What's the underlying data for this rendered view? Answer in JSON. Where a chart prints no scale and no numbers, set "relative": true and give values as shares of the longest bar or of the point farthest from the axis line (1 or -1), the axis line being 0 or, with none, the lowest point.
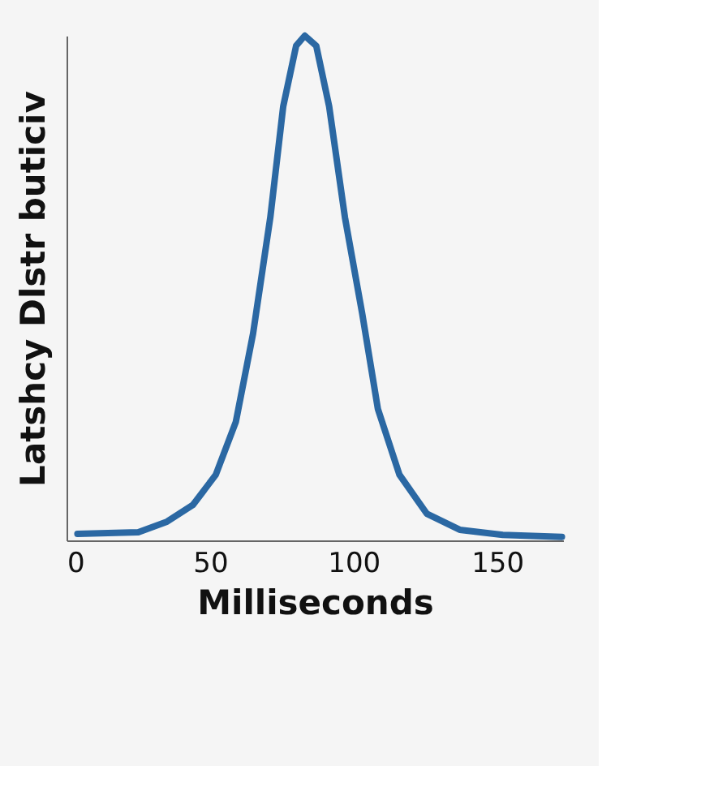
{
  "chart_data": {
    "type": "line",
    "xlabel": "Milliseconds",
    "ylabel": "Latshcy Dlstr buticiv",
    "x": [
      3.8,
      25,
      35,
      44,
      52,
      59,
      65,
      71,
      75.5,
      80,
      83,
      87,
      91.5,
      97,
      103,
      108.5,
      116,
      125.5,
      137,
      152,
      172.6
    ],
    "series": [
      {
        "color": "#2b68a3",
        "values": [
          0.013,
          0.016,
          0.037,
          0.07,
          0.13,
          0.235,
          0.41,
          0.64,
          0.86,
          0.98,
          1,
          0.98,
          0.86,
          0.64,
          0.45,
          0.26,
          0.13,
          0.053,
          0.021,
          0.011,
          0.007
        ]
      }
    ],
    "relative": true,
    "xlim": [
      0,
      173
    ],
    "xticks": [
      0,
      50,
      100,
      150
    ],
    "grid": false,
    "legend": false
  }
}
